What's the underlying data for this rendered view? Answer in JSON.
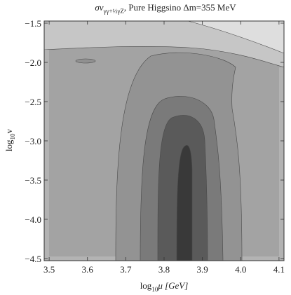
{
  "chart_data": {
    "type": "contour",
    "title": {
      "main": "σv",
      "subscript": "γγ+½γZ",
      "suffix": ",  Pure Higgsino Δm=355 MeV"
    },
    "xlabel": {
      "base": "log",
      "sub": "10",
      "rest": "μ [GeV]"
    },
    "ylabel": {
      "base": "log",
      "sub": "10",
      "rest": "v"
    },
    "xlim": [
      3.487,
      4.113
    ],
    "ylim": [
      -4.527,
      -1.473
    ],
    "xticks": [
      3.5,
      3.6,
      3.7,
      3.8,
      3.9,
      {
        "value": 4,
        "label": "4.0"
      },
      4.1
    ],
    "yticks": [
      {
        "value": -4.5,
        "label": "−4.5"
      },
      {
        "value": -4,
        "label": "−4.0"
      },
      {
        "value": -3.5,
        "label": "−3.5"
      },
      {
        "value": -3,
        "label": "−3.0"
      },
      {
        "value": -2.5,
        "label": "−2.5"
      },
      {
        "value": -2,
        "label": "−2.0"
      },
      {
        "value": -1.5,
        "label": "−1.5"
      }
    ]
  }
}
